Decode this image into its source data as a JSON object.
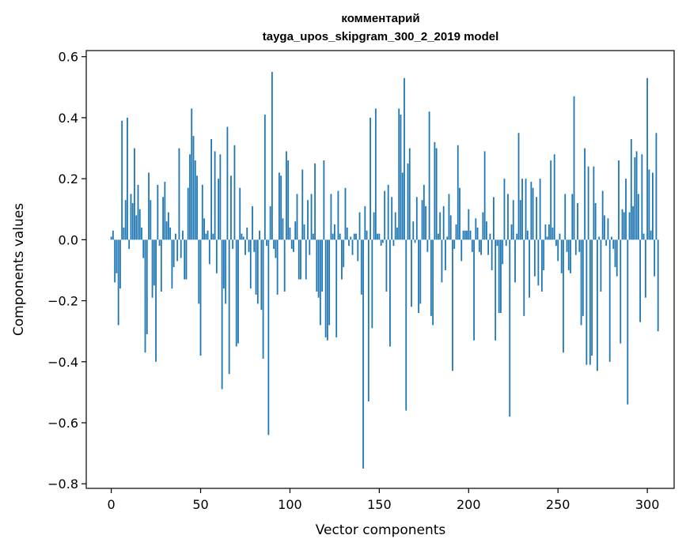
{
  "chart_data": {
    "type": "bar",
    "title_line1": "комментарий",
    "title_line2": "tayga_upos_skipgram_300_2_2019 model",
    "xlabel": "Vector components",
    "ylabel": "Components values",
    "xlim": [
      -14,
      315
    ],
    "ylim": [
      -0.815,
      0.62
    ],
    "xticks": [
      0,
      50,
      100,
      150,
      200,
      250,
      300
    ],
    "xtick_labels": [
      "0",
      "50",
      "100",
      "150",
      "200",
      "250",
      "300"
    ],
    "yticks": [
      -0.8,
      -0.6,
      -0.4,
      -0.2,
      0.0,
      0.2,
      0.4,
      0.6
    ],
    "ytick_labels": [
      "−0.8",
      "−0.6",
      "−0.4",
      "−0.2",
      "0.0",
      "0.2",
      "0.4",
      "0.6"
    ],
    "bar_color": "#1f77b4",
    "grid": false,
    "values": [
      0.01,
      0.03,
      -0.14,
      -0.11,
      -0.28,
      -0.16,
      0.39,
      0.04,
      0.13,
      0.4,
      -0.03,
      0.15,
      0.12,
      0.3,
      0.08,
      0.18,
      0.1,
      0.04,
      -0.06,
      -0.37,
      -0.31,
      0.22,
      0.13,
      -0.19,
      -0.15,
      -0.4,
      0.18,
      -0.02,
      -0.17,
      0.14,
      0.19,
      0.06,
      0.09,
      0.04,
      -0.16,
      -0.09,
      0.02,
      -0.07,
      0.3,
      -0.06,
      0.03,
      -0.13,
      -0.13,
      0.17,
      0.28,
      0.43,
      0.34,
      0.26,
      0.21,
      -0.21,
      -0.38,
      0.18,
      0.07,
      0.02,
      0.03,
      -0.08,
      0.33,
      0.02,
      0.29,
      -0.11,
      0.2,
      0.28,
      -0.49,
      -0.16,
      -0.21,
      0.37,
      -0.44,
      0.21,
      -0.03,
      0.31,
      -0.35,
      -0.34,
      0.17,
      0.02,
      0.01,
      -0.05,
      0.04,
      -0.04,
      -0.16,
      0.11,
      -0.04,
      -0.18,
      -0.21,
      0.03,
      -0.23,
      -0.39,
      0.41,
      -0.02,
      -0.64,
      0.11,
      0.55,
      -0.03,
      -0.06,
      -0.18,
      0.22,
      0.21,
      0.07,
      -0.17,
      0.29,
      0.26,
      0.04,
      -0.03,
      -0.04,
      0.06,
      0.15,
      -0.13,
      -0.13,
      0.23,
      0.05,
      -0.13,
      0.13,
      -0.05,
      0.15,
      0.02,
      0.25,
      -0.17,
      -0.19,
      -0.28,
      -0.17,
      0.26,
      -0.32,
      -0.33,
      -0.28,
      0.15,
      0.02,
      0.05,
      -0.32,
      0.16,
      0.02,
      -0.13,
      -0.09,
      0.17,
      0.04,
      -0.02,
      0.01,
      -0.05,
      0.02,
      0.02,
      -0.07,
      0.09,
      -0.18,
      -0.75,
      0.11,
      0.03,
      -0.53,
      0.4,
      -0.29,
      0.09,
      0.43,
      0.02,
      0.02,
      -0.02,
      -0.01,
      0.16,
      -0.17,
      0.18,
      -0.35,
      0.14,
      -0.02,
      0.09,
      0.04,
      0.43,
      0.41,
      0.22,
      0.53,
      -0.56,
      0.25,
      0.3,
      -0.22,
      0.06,
      -0.01,
      0.14,
      -0.24,
      -0.21,
      0.13,
      0.18,
      0.11,
      -0.04,
      0.42,
      -0.25,
      -0.28,
      0.32,
      0.3,
      0.02,
      0.09,
      -0.14,
      0.11,
      -0.1,
      0.01,
      0.15,
      0.08,
      -0.43,
      -0.03,
      0.05,
      0.31,
      0.17,
      -0.07,
      0.03,
      0.03,
      0.03,
      0.1,
      0.03,
      -0.04,
      -0.33,
      0.07,
      0.04,
      -0.04,
      -0.05,
      0.09,
      0.29,
      0.06,
      -0.05,
      0.02,
      -0.1,
      0.14,
      -0.33,
      -0.02,
      -0.24,
      -0.24,
      -0.08,
      0.2,
      -0.02,
      0.15,
      -0.58,
      0.05,
      0.13,
      -0.14,
      0.02,
      0.35,
      0.13,
      0.2,
      -0.25,
      0.2,
      0.03,
      -0.19,
      0.19,
      0.17,
      -0.12,
      0.14,
      -0.15,
      0.2,
      -0.17,
      -0.1,
      0.05,
      0.01,
      0.05,
      0.26,
      0.04,
      0.28,
      -0.02,
      -0.07,
      0.02,
      -0.11,
      -0.37,
      0.15,
      -0.04,
      -0.1,
      -0.11,
      0.15,
      0.47,
      -0.05,
      0.12,
      -0.04,
      -0.28,
      -0.25,
      0.3,
      -0.41,
      0.24,
      -0.41,
      -0.38,
      0.24,
      0.12,
      -0.43,
      0.01,
      -0.17,
      0.16,
      0.08,
      -0.02,
      0.07,
      -0.4,
      0.01,
      -0.03,
      -0.09,
      -0.12,
      0.26,
      -0.34,
      0.1,
      0.09,
      0.2,
      -0.54,
      0.09,
      0.33,
      0.11,
      0.27,
      0.29,
      0.15,
      -0.27,
      0.28,
      0.02,
      -0.19,
      0.53,
      0.23,
      0.03,
      0.22,
      -0.12,
      0.35,
      -0.3
    ]
  }
}
